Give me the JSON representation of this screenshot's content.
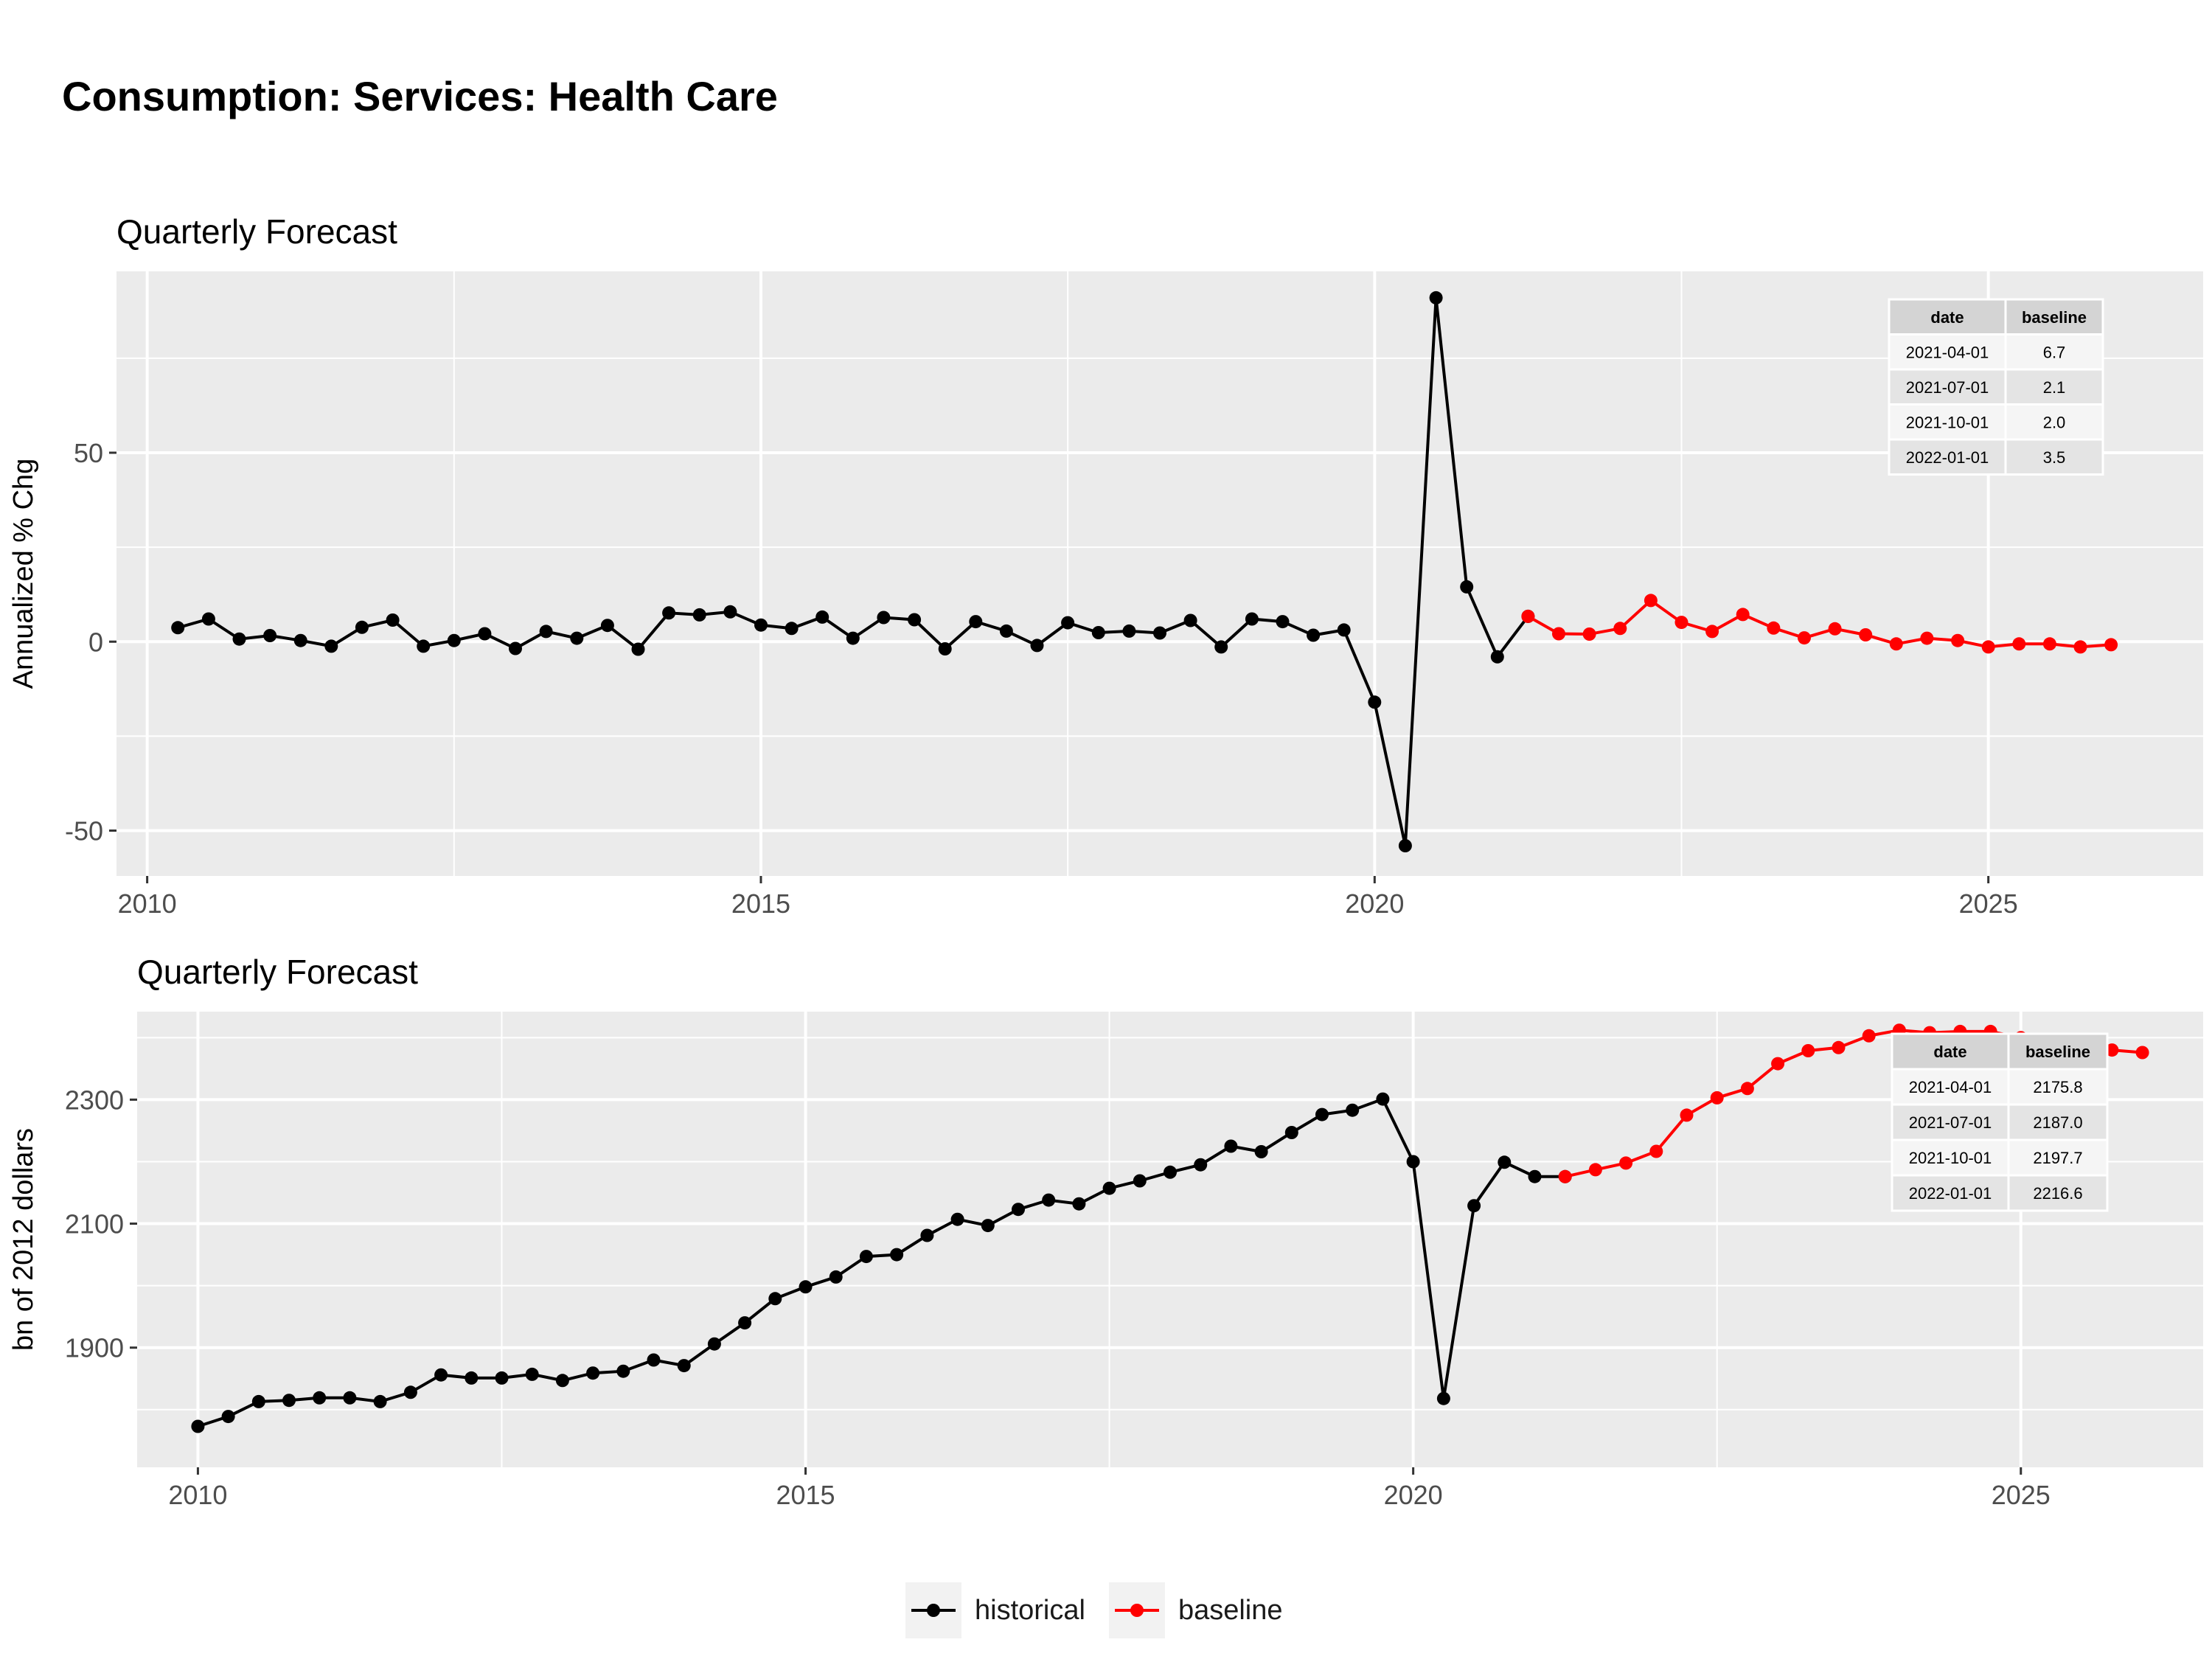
{
  "title": "Consumption: Services: Health Care",
  "legend": [
    {
      "label": "historical",
      "color": "#000000"
    },
    {
      "label": "baseline",
      "color": "#ff0000"
    }
  ],
  "chart_data": [
    {
      "type": "line",
      "subtitle": "Quarterly Forecast",
      "ylabel": "Annualized % Chg",
      "xlabel": "",
      "x_ticks": [
        "2010",
        "2015",
        "2020",
        "2025"
      ],
      "y_ticks": [
        -50,
        0,
        50
      ],
      "xlim": [
        "2009-10-01",
        "2026-10-01"
      ],
      "ylim": [
        -62,
        98
      ],
      "grid": true,
      "series": [
        {
          "name": "historical",
          "color": "#000000",
          "points": [
            [
              "2010-04-01",
              3.7
            ],
            [
              "2010-07-01",
              6.0
            ],
            [
              "2010-10-01",
              0.7
            ],
            [
              "2011-01-01",
              1.6
            ],
            [
              "2011-04-01",
              0.3
            ],
            [
              "2011-07-01",
              -1.2
            ],
            [
              "2011-10-01",
              3.8
            ],
            [
              "2012-01-01",
              5.7
            ],
            [
              "2012-04-01",
              -1.2
            ],
            [
              "2012-07-01",
              0.3
            ],
            [
              "2012-10-01",
              2.1
            ],
            [
              "2013-01-01",
              -1.8
            ],
            [
              "2013-04-01",
              2.7
            ],
            [
              "2013-07-01",
              0.9
            ],
            [
              "2013-10-01",
              4.3
            ],
            [
              "2014-01-01",
              -2.0
            ],
            [
              "2014-04-01",
              7.6
            ],
            [
              "2014-07-01",
              7.1
            ],
            [
              "2014-10-01",
              7.9
            ],
            [
              "2015-01-01",
              4.4
            ],
            [
              "2015-04-01",
              3.5
            ],
            [
              "2015-07-01",
              6.5
            ],
            [
              "2015-10-01",
              0.9
            ],
            [
              "2016-01-01",
              6.4
            ],
            [
              "2016-04-01",
              5.8
            ],
            [
              "2016-07-01",
              -1.9
            ],
            [
              "2016-10-01",
              5.3
            ],
            [
              "2017-01-01",
              2.8
            ],
            [
              "2017-04-01",
              -1.0
            ],
            [
              "2017-07-01",
              5.0
            ],
            [
              "2017-10-01",
              2.4
            ],
            [
              "2018-01-01",
              2.8
            ],
            [
              "2018-04-01",
              2.3
            ],
            [
              "2018-07-01",
              5.6
            ],
            [
              "2018-10-01",
              -1.4
            ],
            [
              "2019-01-01",
              6.0
            ],
            [
              "2019-04-01",
              5.3
            ],
            [
              "2019-07-01",
              1.7
            ],
            [
              "2019-10-01",
              3.1
            ],
            [
              "2020-01-01",
              -16.0
            ],
            [
              "2020-04-01",
              -54.0
            ],
            [
              "2020-07-01",
              91.0
            ],
            [
              "2020-10-01",
              14.5
            ],
            [
              "2021-01-01",
              -4.0
            ],
            [
              "2021-04-01",
              6.7
            ]
          ]
        },
        {
          "name": "baseline",
          "color": "#ff0000",
          "points": [
            [
              "2021-04-01",
              6.7
            ],
            [
              "2021-07-01",
              2.1
            ],
            [
              "2021-10-01",
              2.0
            ],
            [
              "2022-01-01",
              3.5
            ],
            [
              "2022-04-01",
              10.9
            ],
            [
              "2022-07-01",
              5.1
            ],
            [
              "2022-10-01",
              2.7
            ],
            [
              "2023-01-01",
              7.2
            ],
            [
              "2023-04-01",
              3.6
            ],
            [
              "2023-07-01",
              1.0
            ],
            [
              "2023-10-01",
              3.4
            ],
            [
              "2024-01-01",
              1.8
            ],
            [
              "2024-04-01",
              -0.6
            ],
            [
              "2024-07-01",
              0.9
            ],
            [
              "2024-10-01",
              0.3
            ],
            [
              "2025-01-01",
              -1.4
            ],
            [
              "2025-04-01",
              -0.6
            ],
            [
              "2025-07-01",
              -0.6
            ],
            [
              "2025-10-01",
              -1.4
            ],
            [
              "2026-01-01",
              -0.8
            ]
          ]
        }
      ],
      "table": {
        "columns": [
          "date",
          "baseline"
        ],
        "rows": [
          [
            "2021-04-01",
            "6.7"
          ],
          [
            "2021-07-01",
            "2.1"
          ],
          [
            "2021-10-01",
            "2.0"
          ],
          [
            "2022-01-01",
            "3.5"
          ]
        ]
      }
    },
    {
      "type": "line",
      "subtitle": "Quarterly Forecast",
      "ylabel": "bn of 2012 dollars",
      "xlabel": "",
      "x_ticks": [
        "2010",
        "2015",
        "2020",
        "2025"
      ],
      "y_ticks": [
        1900,
        2100,
        2300
      ],
      "xlim": [
        "2009-07-01",
        "2026-07-01"
      ],
      "ylim": [
        1707,
        2442
      ],
      "grid": true,
      "series": [
        {
          "name": "historical",
          "color": "#000000",
          "points": [
            [
              "2010-01-01",
              1773
            ],
            [
              "2010-04-01",
              1789
            ],
            [
              "2010-07-01",
              1813
            ],
            [
              "2010-10-01",
              1815
            ],
            [
              "2011-01-01",
              1819
            ],
            [
              "2011-04-01",
              1819
            ],
            [
              "2011-07-01",
              1813
            ],
            [
              "2011-10-01",
              1828
            ],
            [
              "2012-01-01",
              1856
            ],
            [
              "2012-04-01",
              1851
            ],
            [
              "2012-07-01",
              1851
            ],
            [
              "2012-10-01",
              1857
            ],
            [
              "2013-01-01",
              1847
            ],
            [
              "2013-04-01",
              1859
            ],
            [
              "2013-07-01",
              1862
            ],
            [
              "2013-10-01",
              1880
            ],
            [
              "2014-01-01",
              1871
            ],
            [
              "2014-04-01",
              1906
            ],
            [
              "2014-07-01",
              1940
            ],
            [
              "2014-10-01",
              1979
            ],
            [
              "2015-01-01",
              1998
            ],
            [
              "2015-04-01",
              2014
            ],
            [
              "2015-07-01",
              2047
            ],
            [
              "2015-10-01",
              2050
            ],
            [
              "2016-01-01",
              2081
            ],
            [
              "2016-04-01",
              2107
            ],
            [
              "2016-07-01",
              2097
            ],
            [
              "2016-10-01",
              2123
            ],
            [
              "2017-01-01",
              2138
            ],
            [
              "2017-04-01",
              2132
            ],
            [
              "2017-07-01",
              2157
            ],
            [
              "2017-10-01",
              2169
            ],
            [
              "2018-01-01",
              2183
            ],
            [
              "2018-04-01",
              2195
            ],
            [
              "2018-07-01",
              2225
            ],
            [
              "2018-10-01",
              2216
            ],
            [
              "2019-01-01",
              2247
            ],
            [
              "2019-04-01",
              2276
            ],
            [
              "2019-07-01",
              2283
            ],
            [
              "2019-10-01",
              2301
            ],
            [
              "2020-01-01",
              2200
            ],
            [
              "2020-04-01",
              1818
            ],
            [
              "2020-07-01",
              2129
            ],
            [
              "2020-10-01",
              2199
            ],
            [
              "2021-01-01",
              2176
            ],
            [
              "2021-04-01",
              2175.8
            ]
          ]
        },
        {
          "name": "baseline",
          "color": "#ff0000",
          "points": [
            [
              "2021-04-01",
              2175.8
            ],
            [
              "2021-07-01",
              2187.0
            ],
            [
              "2021-10-01",
              2197.7
            ],
            [
              "2022-01-01",
              2216.6
            ],
            [
              "2022-04-01",
              2275
            ],
            [
              "2022-07-01",
              2303
            ],
            [
              "2022-10-01",
              2318
            ],
            [
              "2023-01-01",
              2358
            ],
            [
              "2023-04-01",
              2379
            ],
            [
              "2023-07-01",
              2384
            ],
            [
              "2023-10-01",
              2403
            ],
            [
              "2024-01-01",
              2412
            ],
            [
              "2024-04-01",
              2408
            ],
            [
              "2024-07-01",
              2410
            ],
            [
              "2024-10-01",
              2410
            ],
            [
              "2025-01-01",
              2400
            ],
            [
              "2025-04-01",
              2392
            ],
            [
              "2025-07-01",
              2388
            ],
            [
              "2025-10-01",
              2380
            ],
            [
              "2026-01-01",
              2376
            ]
          ]
        }
      ],
      "table": {
        "columns": [
          "date",
          "baseline"
        ],
        "rows": [
          [
            "2021-04-01",
            "2175.8"
          ],
          [
            "2021-07-01",
            "2187.0"
          ],
          [
            "2021-10-01",
            "2197.7"
          ],
          [
            "2022-01-01",
            "2216.6"
          ]
        ]
      }
    }
  ]
}
